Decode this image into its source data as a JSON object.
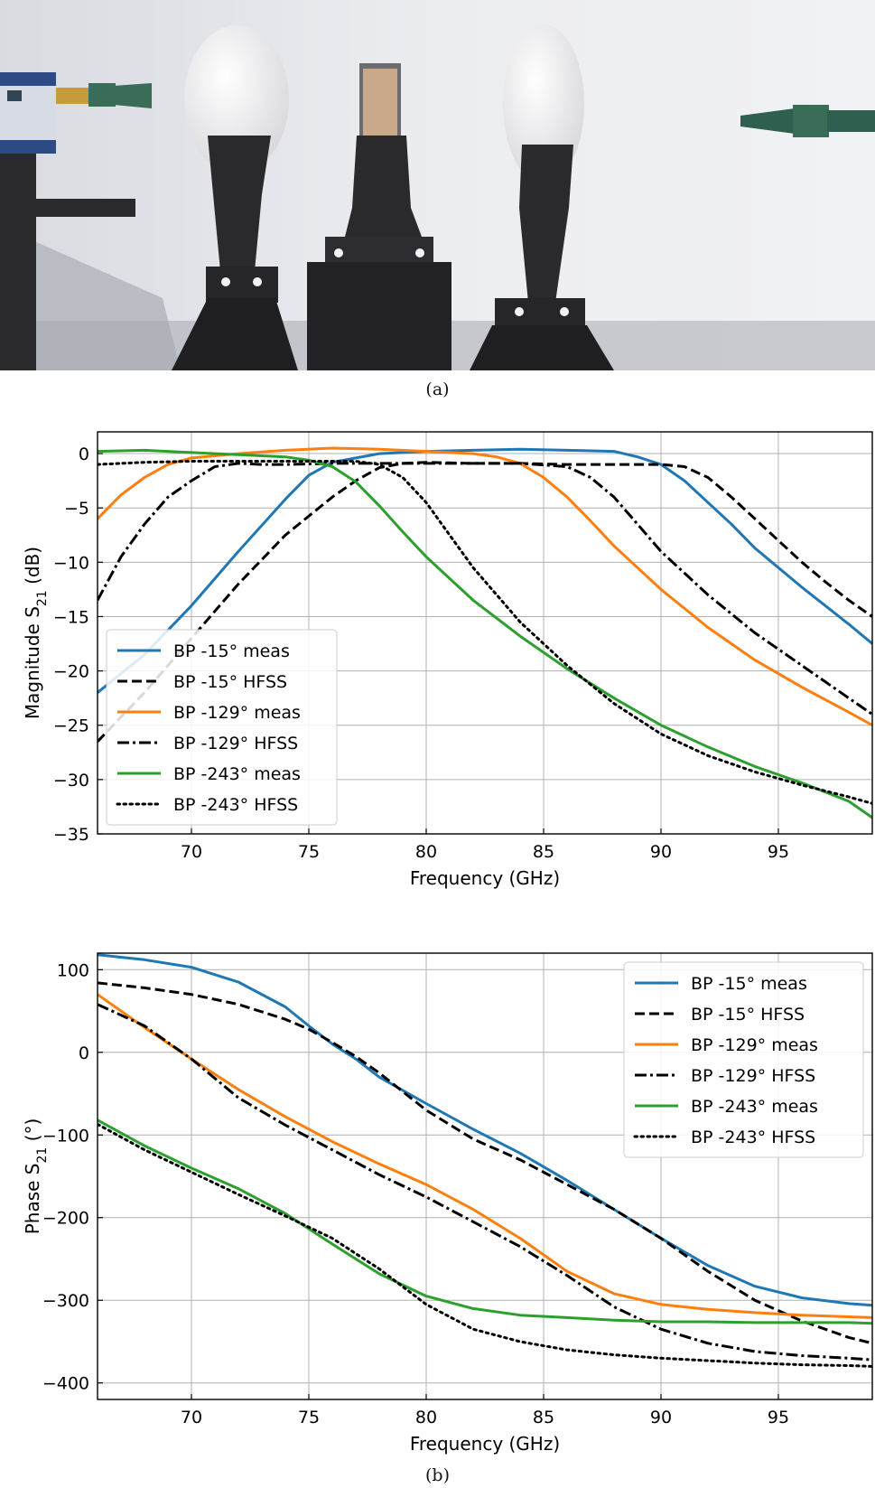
{
  "figure": {
    "caption_a": "(a)",
    "caption_b": "(b)"
  },
  "photo": {
    "description_icon": "measurement-setup-photo",
    "colors": {
      "wall": "#e9eaee",
      "stand": "#2a2a2d",
      "lens": "#f4f4f6",
      "horn": "#2f5f4e",
      "brass": "#c79a3c",
      "sample": "#c9a98a"
    }
  },
  "chart_data": [
    {
      "type": "line",
      "title": "",
      "xlabel": "Frequency (GHz)",
      "ylabel_main": "Magnitude S",
      "ylabel_sub": "21",
      "ylabel_unit": " (dB)",
      "xlim": [
        66,
        99
      ],
      "ylim": [
        -35,
        2
      ],
      "xticks": [
        70,
        75,
        80,
        85,
        90,
        95
      ],
      "yticks": [
        0,
        -5,
        -10,
        -15,
        -20,
        -25,
        -30,
        -35
      ],
      "grid": true,
      "legend_position": "lower-left",
      "series": [
        {
          "name": "BP -15° meas",
          "color": "#1f77b4",
          "style": "solid",
          "x": [
            66,
            68,
            70,
            72,
            74,
            75,
            76,
            78,
            80,
            82,
            84,
            86,
            88,
            89,
            90,
            91,
            92,
            93,
            94,
            95,
            96,
            97,
            98,
            99
          ],
          "y": [
            -22,
            -18.5,
            -14,
            -9,
            -4.2,
            -2,
            -0.8,
            0,
            0.2,
            0.3,
            0.4,
            0.3,
            0.2,
            -0.3,
            -1,
            -2.5,
            -4.5,
            -6.5,
            -8.7,
            -10.5,
            -12.3,
            -14,
            -15.7,
            -17.5
          ]
        },
        {
          "name": "BP -15° HFSS",
          "color": "#000000",
          "style": "dashed",
          "x": [
            66,
            68,
            70,
            72,
            74,
            76,
            77,
            78,
            79,
            80,
            82,
            84,
            86,
            88,
            90,
            91,
            92,
            93,
            94,
            95,
            96,
            97,
            98,
            99
          ],
          "y": [
            -26.5,
            -22,
            -17,
            -12,
            -7.5,
            -4,
            -2.5,
            -1.3,
            -0.9,
            -0.8,
            -0.9,
            -0.9,
            -1,
            -1,
            -1,
            -1.2,
            -2.2,
            -4,
            -6,
            -8,
            -10,
            -11.8,
            -13.5,
            -15
          ]
        },
        {
          "name": "BP -129° meas",
          "color": "#ff7f0e",
          "style": "solid",
          "x": [
            66,
            67,
            68,
            69,
            70,
            71,
            72,
            74,
            76,
            78,
            80,
            82,
            83,
            84,
            85,
            86,
            87,
            88,
            90,
            92,
            94,
            96,
            98,
            99
          ],
          "y": [
            -6,
            -3.8,
            -2.2,
            -1,
            -0.4,
            -0.2,
            0,
            0.3,
            0.5,
            0.4,
            0.2,
            0,
            -0.3,
            -0.9,
            -2.2,
            -4,
            -6.2,
            -8.5,
            -12.5,
            -16,
            -19,
            -21.5,
            -23.8,
            -25
          ]
        },
        {
          "name": "BP -129° HFSS",
          "color": "#000000",
          "style": "dashdot",
          "x": [
            66,
            67,
            68,
            69,
            70,
            71,
            72,
            73,
            74,
            76,
            78,
            80,
            82,
            84,
            86,
            87,
            88,
            89,
            90,
            92,
            94,
            96,
            98,
            99
          ],
          "y": [
            -13.5,
            -9.5,
            -6.5,
            -4,
            -2.5,
            -1.2,
            -0.9,
            -1,
            -1,
            -0.9,
            -0.9,
            -0.9,
            -0.9,
            -0.9,
            -1.2,
            -2.2,
            -4,
            -6.5,
            -9,
            -13,
            -16.5,
            -19.5,
            -22.5,
            -24
          ]
        },
        {
          "name": "BP -243° meas",
          "color": "#2ca02c",
          "style": "solid",
          "x": [
            66,
            68,
            70,
            72,
            74,
            75,
            76,
            77,
            78,
            79,
            80,
            82,
            84,
            86,
            88,
            90,
            92,
            94,
            96,
            98,
            99
          ],
          "y": [
            0.2,
            0.3,
            0.1,
            -0.1,
            -0.3,
            -0.6,
            -1.2,
            -2.6,
            -4.8,
            -7.2,
            -9.5,
            -13.5,
            -16.8,
            -19.8,
            -22.5,
            -25,
            -27,
            -28.8,
            -30.3,
            -32,
            -33.5
          ]
        },
        {
          "name": "BP -243° HFSS",
          "color": "#000000",
          "style": "dotted",
          "x": [
            66,
            68,
            70,
            72,
            74,
            76,
            77,
            78,
            79,
            80,
            81,
            82,
            84,
            86,
            88,
            90,
            92,
            94,
            96,
            98,
            99
          ],
          "y": [
            -1,
            -0.8,
            -0.7,
            -0.7,
            -0.7,
            -0.7,
            -0.7,
            -1,
            -2.2,
            -4.5,
            -7.5,
            -10.5,
            -15.5,
            -19.5,
            -23,
            -25.8,
            -27.8,
            -29.3,
            -30.5,
            -31.6,
            -32.2
          ]
        }
      ]
    },
    {
      "type": "line",
      "title": "",
      "xlabel": "Frequency (GHz)",
      "ylabel_main": "Phase S",
      "ylabel_sub": "21",
      "ylabel_unit": " (°)",
      "xlim": [
        66,
        99
      ],
      "ylim": [
        -420,
        120
      ],
      "xticks": [
        70,
        75,
        80,
        85,
        90,
        95
      ],
      "yticks": [
        100,
        0,
        -100,
        -200,
        -300,
        -400
      ],
      "grid": true,
      "legend_position": "upper-right",
      "series": [
        {
          "name": "BP -15° meas",
          "color": "#1f77b4",
          "style": "solid",
          "x": [
            66,
            68,
            70,
            72,
            74,
            75,
            76,
            77,
            78,
            80,
            82,
            84,
            86,
            88,
            90,
            92,
            94,
            96,
            98,
            99
          ],
          "y": [
            118,
            112,
            103,
            85,
            55,
            32,
            10,
            -8,
            -30,
            -62,
            -93,
            -122,
            -155,
            -190,
            -225,
            -258,
            -283,
            -297,
            -304,
            -306
          ]
        },
        {
          "name": "BP -15° HFSS",
          "color": "#000000",
          "style": "dashed",
          "x": [
            66,
            68,
            70,
            72,
            74,
            75,
            76,
            77,
            78,
            80,
            82,
            84,
            86,
            88,
            90,
            92,
            94,
            96,
            98,
            99
          ],
          "y": [
            84,
            78,
            70,
            58,
            40,
            28,
            12,
            -5,
            -25,
            -70,
            -105,
            -130,
            -160,
            -190,
            -225,
            -265,
            -300,
            -325,
            -345,
            -352
          ]
        },
        {
          "name": "BP -129° meas",
          "color": "#ff7f0e",
          "style": "solid",
          "x": [
            66,
            68,
            70,
            72,
            74,
            76,
            78,
            80,
            82,
            84,
            85,
            86,
            88,
            90,
            92,
            94,
            96,
            98,
            99
          ],
          "y": [
            70,
            30,
            -8,
            -45,
            -78,
            -108,
            -135,
            -160,
            -190,
            -225,
            -245,
            -265,
            -292,
            -305,
            -311,
            -315,
            -318,
            -320,
            -321
          ]
        },
        {
          "name": "BP -129° HFSS",
          "color": "#000000",
          "style": "dashdot",
          "x": [
            66,
            68,
            70,
            72,
            74,
            76,
            78,
            80,
            82,
            84,
            86,
            88,
            90,
            92,
            94,
            96,
            98,
            99
          ],
          "y": [
            58,
            32,
            -8,
            -55,
            -88,
            -118,
            -148,
            -175,
            -205,
            -235,
            -270,
            -308,
            -335,
            -352,
            -362,
            -367,
            -370,
            -372
          ]
        },
        {
          "name": "BP -243° meas",
          "color": "#2ca02c",
          "style": "solid",
          "x": [
            66,
            68,
            70,
            72,
            74,
            76,
            78,
            80,
            82,
            84,
            86,
            88,
            90,
            92,
            94,
            96,
            98,
            99
          ],
          "y": [
            -82,
            -113,
            -140,
            -165,
            -195,
            -232,
            -268,
            -295,
            -310,
            -318,
            -321,
            -324,
            -326,
            -326,
            -327,
            -327,
            -327,
            -328
          ]
        },
        {
          "name": "BP -243° HFSS",
          "color": "#000000",
          "style": "dotted",
          "x": [
            66,
            68,
            70,
            72,
            74,
            76,
            78,
            80,
            82,
            84,
            86,
            88,
            90,
            92,
            94,
            96,
            98,
            99
          ],
          "y": [
            -87,
            -118,
            -145,
            -172,
            -198,
            -225,
            -262,
            -305,
            -335,
            -350,
            -360,
            -366,
            -370,
            -373,
            -376,
            -378,
            -379,
            -380
          ]
        }
      ]
    }
  ]
}
